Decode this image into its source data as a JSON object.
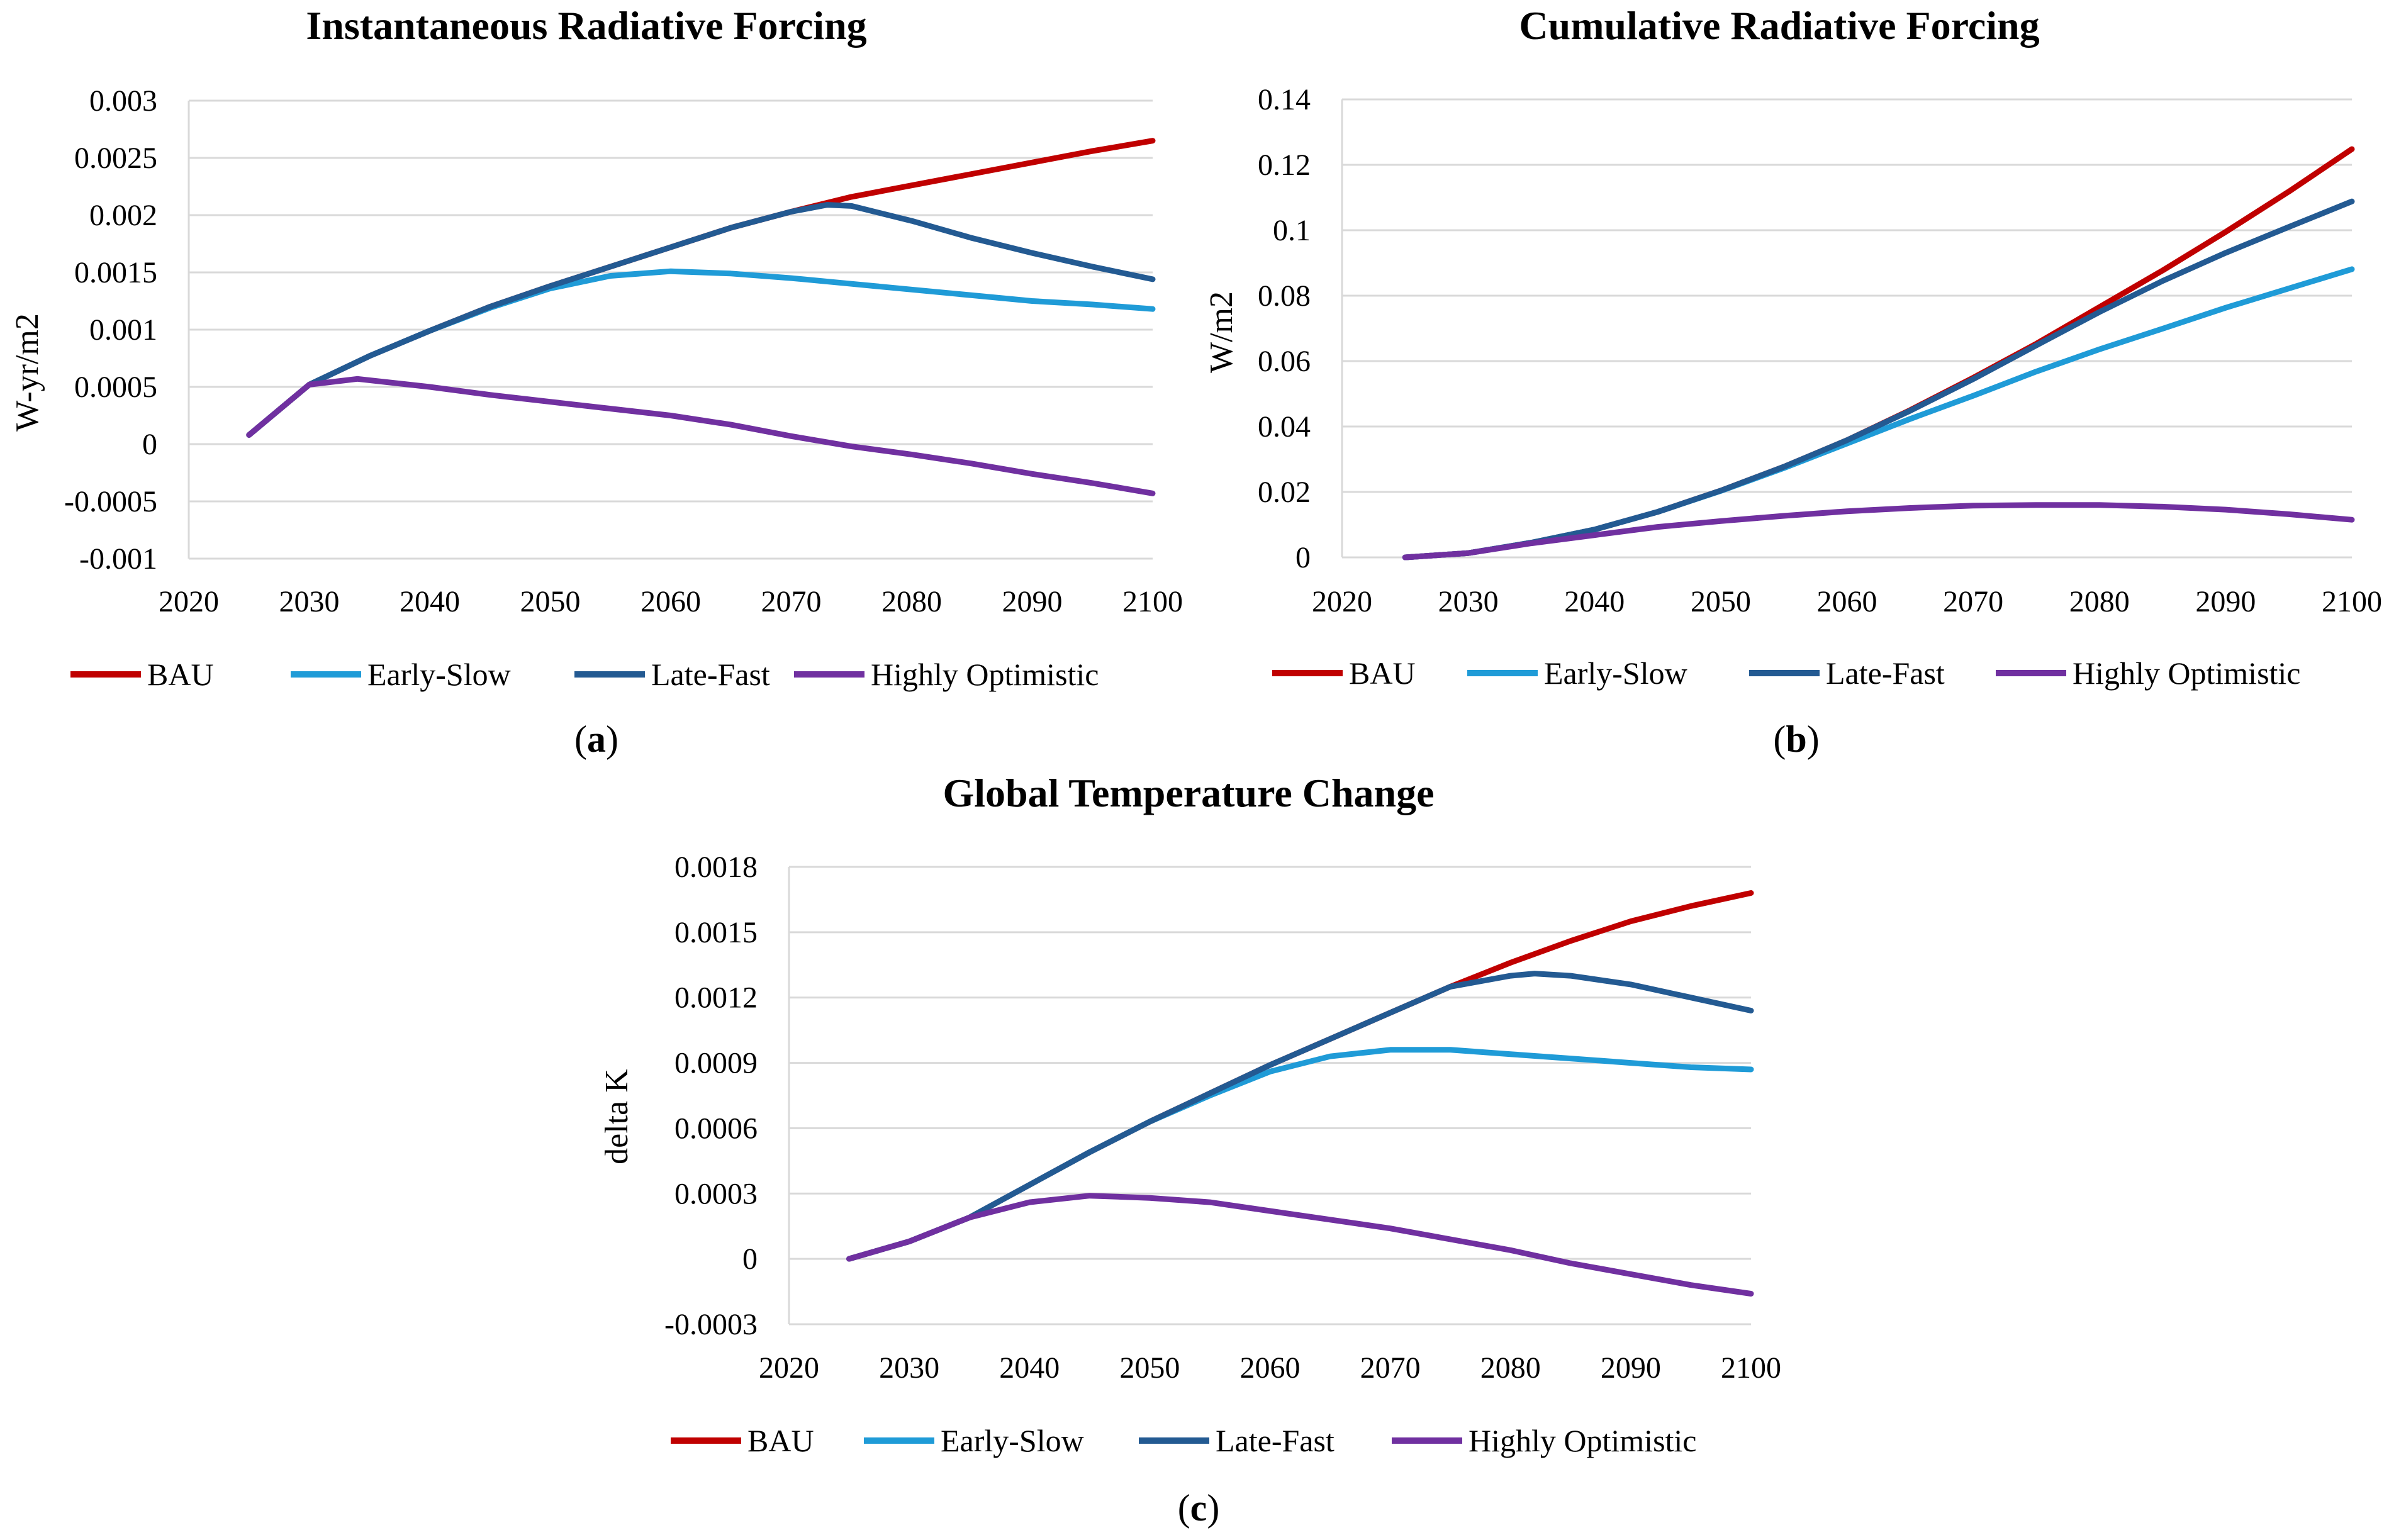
{
  "colors": {
    "BAU": "#c00000",
    "Early-Slow": "#1f9bd7",
    "Late-Fast": "#235a92",
    "Highly Optimistic": "#7030a0",
    "grid": "#d9d9d9"
  },
  "legend": [
    "BAU",
    "Early-Slow",
    "Late-Fast",
    "Highly Optimistic"
  ],
  "chart_data": [
    {
      "id": "a",
      "type": "line",
      "title": "Instantaneous Radiative Forcing",
      "caption_letter": "a",
      "xlabel": "",
      "ylabel": "W-yr/m2",
      "xlim": [
        2020,
        2100
      ],
      "ylim": [
        -0.001,
        0.003
      ],
      "xticks": [
        2020,
        2030,
        2040,
        2050,
        2060,
        2070,
        2080,
        2090,
        2100
      ],
      "yticks": [
        -0.001,
        -0.0005,
        0,
        0.0005,
        0.001,
        0.0015,
        0.002,
        0.0025,
        0.003
      ],
      "ytick_labels": [
        "-0.001",
        "-0.0005",
        "0",
        "0.0005",
        "0.001",
        "0.0015",
        "0.002",
        "0.0025",
        "0.003"
      ],
      "series": [
        {
          "name": "BAU",
          "x": [
            2025,
            2030,
            2035,
            2040,
            2045,
            2050,
            2055,
            2060,
            2065,
            2070,
            2075,
            2080,
            2085,
            2090,
            2095,
            2100
          ],
          "values": [
            8e-05,
            0.00052,
            0.00077,
            0.00099,
            0.0012,
            0.00138,
            0.00155,
            0.00172,
            0.00189,
            0.00203,
            0.00216,
            0.00226,
            0.00236,
            0.00246,
            0.00256,
            0.00265
          ]
        },
        {
          "name": "Early-Slow",
          "x": [
            2025,
            2030,
            2035,
            2040,
            2045,
            2050,
            2055,
            2060,
            2065,
            2070,
            2075,
            2080,
            2085,
            2090,
            2095,
            2100
          ],
          "values": [
            8e-05,
            0.00052,
            0.00077,
            0.00099,
            0.00119,
            0.00136,
            0.00147,
            0.00151,
            0.00149,
            0.00145,
            0.0014,
            0.00135,
            0.0013,
            0.00125,
            0.00122,
            0.00118
          ]
        },
        {
          "name": "Late-Fast",
          "x": [
            2025,
            2030,
            2035,
            2040,
            2045,
            2050,
            2055,
            2060,
            2065,
            2070,
            2073,
            2075,
            2080,
            2085,
            2090,
            2095,
            2100
          ],
          "values": [
            8e-05,
            0.00052,
            0.00077,
            0.00099,
            0.0012,
            0.00138,
            0.00155,
            0.00172,
            0.00189,
            0.00203,
            0.00209,
            0.00208,
            0.00195,
            0.0018,
            0.00167,
            0.00155,
            0.00144
          ]
        },
        {
          "name": "Highly Optimistic",
          "x": [
            2025,
            2030,
            2034,
            2040,
            2045,
            2050,
            2055,
            2060,
            2065,
            2070,
            2075,
            2080,
            2085,
            2090,
            2095,
            2100
          ],
          "values": [
            8e-05,
            0.00052,
            0.00057,
            0.0005,
            0.00043,
            0.00037,
            0.00031,
            0.00025,
            0.00017,
            7e-05,
            -2e-05,
            -9e-05,
            -0.00017,
            -0.00026,
            -0.00034,
            -0.00043
          ]
        }
      ]
    },
    {
      "id": "b",
      "type": "line",
      "title": "Cumulative Radiative Forcing",
      "caption_letter": "b",
      "xlabel": "",
      "ylabel": "W/m2",
      "xlim": [
        2020,
        2100
      ],
      "ylim": [
        0,
        0.14
      ],
      "xticks": [
        2020,
        2030,
        2040,
        2050,
        2060,
        2070,
        2080,
        2090,
        2100
      ],
      "yticks": [
        0,
        0.02,
        0.04,
        0.06,
        0.08,
        0.1,
        0.12,
        0.14
      ],
      "ytick_labels": [
        "0",
        "0.02",
        "0.04",
        "0.06",
        "0.08",
        "0.1",
        "0.12",
        "0.14"
      ],
      "series": [
        {
          "name": "BAU",
          "x": [
            2025,
            2030,
            2035,
            2040,
            2045,
            2050,
            2055,
            2060,
            2065,
            2070,
            2075,
            2080,
            2085,
            2090,
            2095,
            2100
          ],
          "values": [
            0,
            0.0013,
            0.0045,
            0.0085,
            0.0139,
            0.0204,
            0.0277,
            0.0358,
            0.045,
            0.0549,
            0.0653,
            0.0765,
            0.0877,
            0.0995,
            0.1118,
            0.1248
          ]
        },
        {
          "name": "Early-Slow",
          "x": [
            2025,
            2030,
            2035,
            2040,
            2045,
            2050,
            2055,
            2060,
            2065,
            2070,
            2075,
            2080,
            2085,
            2090,
            2095,
            2100
          ],
          "values": [
            0,
            0.0013,
            0.0045,
            0.0085,
            0.0139,
            0.0203,
            0.0273,
            0.0348,
            0.0423,
            0.0494,
            0.0568,
            0.0636,
            0.0699,
            0.0763,
            0.0822,
            0.0881
          ]
        },
        {
          "name": "Late-Fast",
          "x": [
            2025,
            2030,
            2035,
            2040,
            2045,
            2050,
            2055,
            2060,
            2065,
            2070,
            2075,
            2080,
            2085,
            2090,
            2095,
            2100
          ],
          "values": [
            0,
            0.0013,
            0.0045,
            0.0085,
            0.0139,
            0.0204,
            0.0277,
            0.0358,
            0.0448,
            0.0545,
            0.0648,
            0.075,
            0.0845,
            0.0931,
            0.101,
            0.1088
          ]
        },
        {
          "name": "Highly Optimistic",
          "x": [
            2025,
            2030,
            2035,
            2040,
            2045,
            2050,
            2055,
            2060,
            2065,
            2070,
            2075,
            2080,
            2085,
            2090,
            2095,
            2100
          ],
          "values": [
            0,
            0.0013,
            0.0043,
            0.0068,
            0.0093,
            0.0111,
            0.0127,
            0.0141,
            0.0151,
            0.0158,
            0.016,
            0.016,
            0.0155,
            0.0146,
            0.0132,
            0.0115
          ]
        }
      ]
    },
    {
      "id": "c",
      "type": "line",
      "title": "Global Temperature Change",
      "caption_letter": "c",
      "xlabel": "",
      "ylabel": "delta K",
      "xlim": [
        2020,
        2100
      ],
      "ylim": [
        -0.0003,
        0.0018
      ],
      "xticks": [
        2020,
        2030,
        2040,
        2050,
        2060,
        2070,
        2080,
        2090,
        2100
      ],
      "yticks": [
        -0.0003,
        0,
        0.0003,
        0.0006,
        0.0009,
        0.0012,
        0.0015,
        0.0018
      ],
      "ytick_labels": [
        "-0.0003",
        "0",
        "0.0003",
        "0.0006",
        "0.0009",
        "0.0012",
        "0.0015",
        "0.0018"
      ],
      "series": [
        {
          "name": "BAU",
          "x": [
            2025,
            2030,
            2035,
            2040,
            2045,
            2050,
            2055,
            2060,
            2065,
            2070,
            2075,
            2080,
            2085,
            2090,
            2095,
            2100
          ],
          "values": [
            0,
            8e-05,
            0.00019,
            0.00034,
            0.00049,
            0.00063,
            0.00076,
            0.00089,
            0.00101,
            0.00113,
            0.00125,
            0.00136,
            0.00146,
            0.00155,
            0.00162,
            0.00168
          ]
        },
        {
          "name": "Early-Slow",
          "x": [
            2025,
            2030,
            2035,
            2040,
            2045,
            2050,
            2055,
            2060,
            2065,
            2070,
            2075,
            2080,
            2085,
            2090,
            2095,
            2100
          ],
          "values": [
            0,
            8e-05,
            0.00019,
            0.00034,
            0.00049,
            0.00063,
            0.00075,
            0.00086,
            0.00093,
            0.00096,
            0.00096,
            0.00094,
            0.00092,
            0.0009,
            0.00088,
            0.00087
          ]
        },
        {
          "name": "Late-Fast",
          "x": [
            2025,
            2030,
            2035,
            2040,
            2045,
            2050,
            2055,
            2060,
            2065,
            2070,
            2075,
            2080,
            2082,
            2085,
            2090,
            2095,
            2100
          ],
          "values": [
            0,
            8e-05,
            0.00019,
            0.00034,
            0.00049,
            0.00063,
            0.00076,
            0.00089,
            0.00101,
            0.00113,
            0.00125,
            0.0013,
            0.00131,
            0.0013,
            0.00126,
            0.0012,
            0.00114
          ]
        },
        {
          "name": "Highly Optimistic",
          "x": [
            2025,
            2030,
            2035,
            2040,
            2045,
            2050,
            2055,
            2060,
            2065,
            2070,
            2075,
            2080,
            2085,
            2090,
            2095,
            2100
          ],
          "values": [
            0,
            8e-05,
            0.00019,
            0.00026,
            0.00029,
            0.00028,
            0.00026,
            0.00022,
            0.00018,
            0.00014,
            9e-05,
            4e-05,
            -2e-05,
            -7e-05,
            -0.00012,
            -0.00016
          ]
        }
      ]
    }
  ]
}
